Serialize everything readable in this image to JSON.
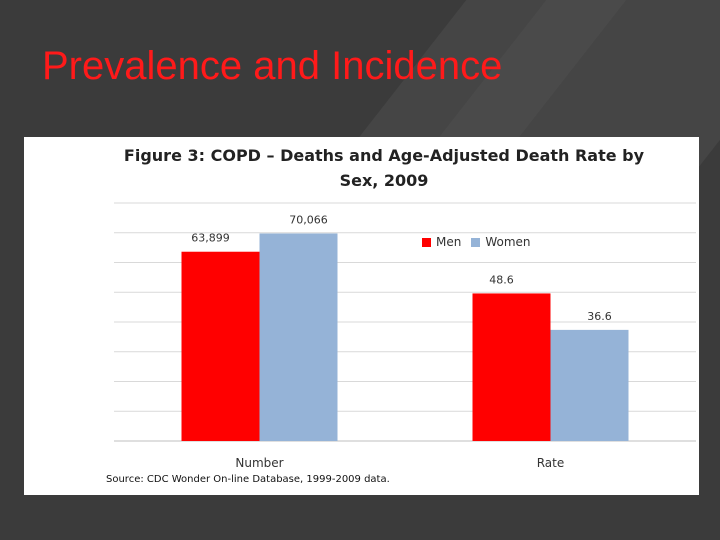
{
  "slide": {
    "title": "Prevalence and Incidence"
  },
  "colors": {
    "background": "#3b3b3b",
    "title": "#ff1a1a",
    "men": "#ff0000",
    "women": "#95b3d7",
    "gridline": "#d9d9d9"
  },
  "chart_data": {
    "type": "bar",
    "title_line1": "Figure 3: COPD – Deaths and Age-Adjusted Death Rate by",
    "title_line2": "Sex, 2009",
    "categories": [
      "Number",
      "Rate"
    ],
    "series": [
      {
        "name": "Men",
        "color": "#ff0000",
        "bars": [
          {
            "category": "Number",
            "label": "63,899",
            "value": 63899
          },
          {
            "category": "Rate",
            "label": "48.6",
            "value": 48.6
          }
        ]
      },
      {
        "name": "Women",
        "color": "#95b3d7",
        "bars": [
          {
            "category": "Number",
            "label": "70,066",
            "value": 70066
          },
          {
            "category": "Rate",
            "label": "36.6",
            "value": 36.6
          }
        ]
      }
    ],
    "grid": true,
    "legend_position": "top-right",
    "source": "Source: CDC Wonder On-line Database,  1999-2009 data."
  }
}
